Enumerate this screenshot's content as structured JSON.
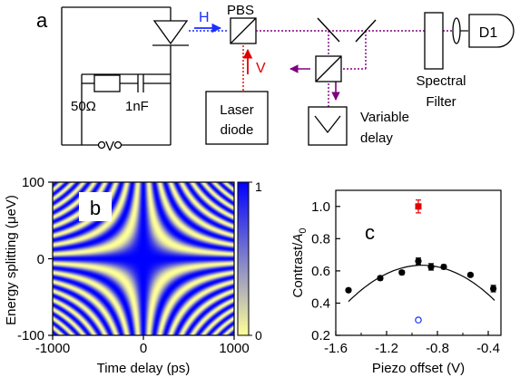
{
  "panel_a": {
    "label": "a",
    "resistor": "50Ω",
    "capacitor": "1nF",
    "voltage": "V",
    "h_label": "H",
    "v_label": "V",
    "pbs": "PBS",
    "laser_line1": "Laser",
    "laser_line2": "diode",
    "delay_line1": "Variable",
    "delay_line2": "delay",
    "filter_line1": "Spectral",
    "filter_line2": "Filter",
    "detector": "D1",
    "colors": {
      "h_arrow": "#1a2fff",
      "v_arrow": "#e00000",
      "beam": "#800080"
    }
  },
  "panel_b": {
    "label": "b",
    "ylabel": "Energy splitting (μeV)",
    "xlabel": "Time delay (ps)",
    "xticks": [
      "-1000",
      "0",
      "1000"
    ],
    "yticks": [
      "100",
      "0",
      "-100"
    ],
    "colorbar_ticks": [
      "1",
      "0"
    ],
    "colors": {
      "high": "#0000ff",
      "low": "#ffff99"
    },
    "chart_data": {
      "type": "heatmap",
      "xlim": [
        -1000,
        1000
      ],
      "ylim": [
        -100,
        100
      ],
      "zlim": [
        0,
        1
      ]
    }
  },
  "panel_c": {
    "label": "c",
    "ylabel_main": "Contrast/",
    "ylabel_italic": "A",
    "ylabel_sub": "0",
    "xlabel": "Piezo offset (V)",
    "xticks": [
      "-1.6",
      "-1.2",
      "-0.8",
      "-0.4"
    ],
    "yticks": [
      "0.2",
      "0.4",
      "0.6",
      "0.8",
      "1.0"
    ],
    "colors": {
      "points": "#000000",
      "red": "#e00000",
      "blue": "#1a2fff"
    },
    "chart_data": {
      "type": "scatter",
      "xlim": [
        -1.6,
        -0.3
      ],
      "ylim": [
        0.2,
        1.1
      ],
      "series": [
        {
          "x": [
            -1.5,
            -1.25,
            -1.08,
            -0.95,
            -0.85,
            -0.75,
            -0.54,
            -0.36
          ],
          "y": [
            0.48,
            0.555,
            0.59,
            0.66,
            0.625,
            0.625,
            0.575,
            0.49
          ],
          "err": [
            0.01,
            0.012,
            0.012,
            0.02,
            0.02,
            0.012,
            0.01,
            0.02
          ]
        },
        {
          "x": [
            -0.95
          ],
          "y": [
            1.0
          ],
          "err": [
            0.04
          ]
        },
        {
          "x": [
            -0.95
          ],
          "y": [
            0.295
          ],
          "err": [
            0
          ]
        }
      ],
      "fit": {
        "x0": -0.92,
        "y0": 0.635,
        "a": 0.67
      }
    }
  }
}
